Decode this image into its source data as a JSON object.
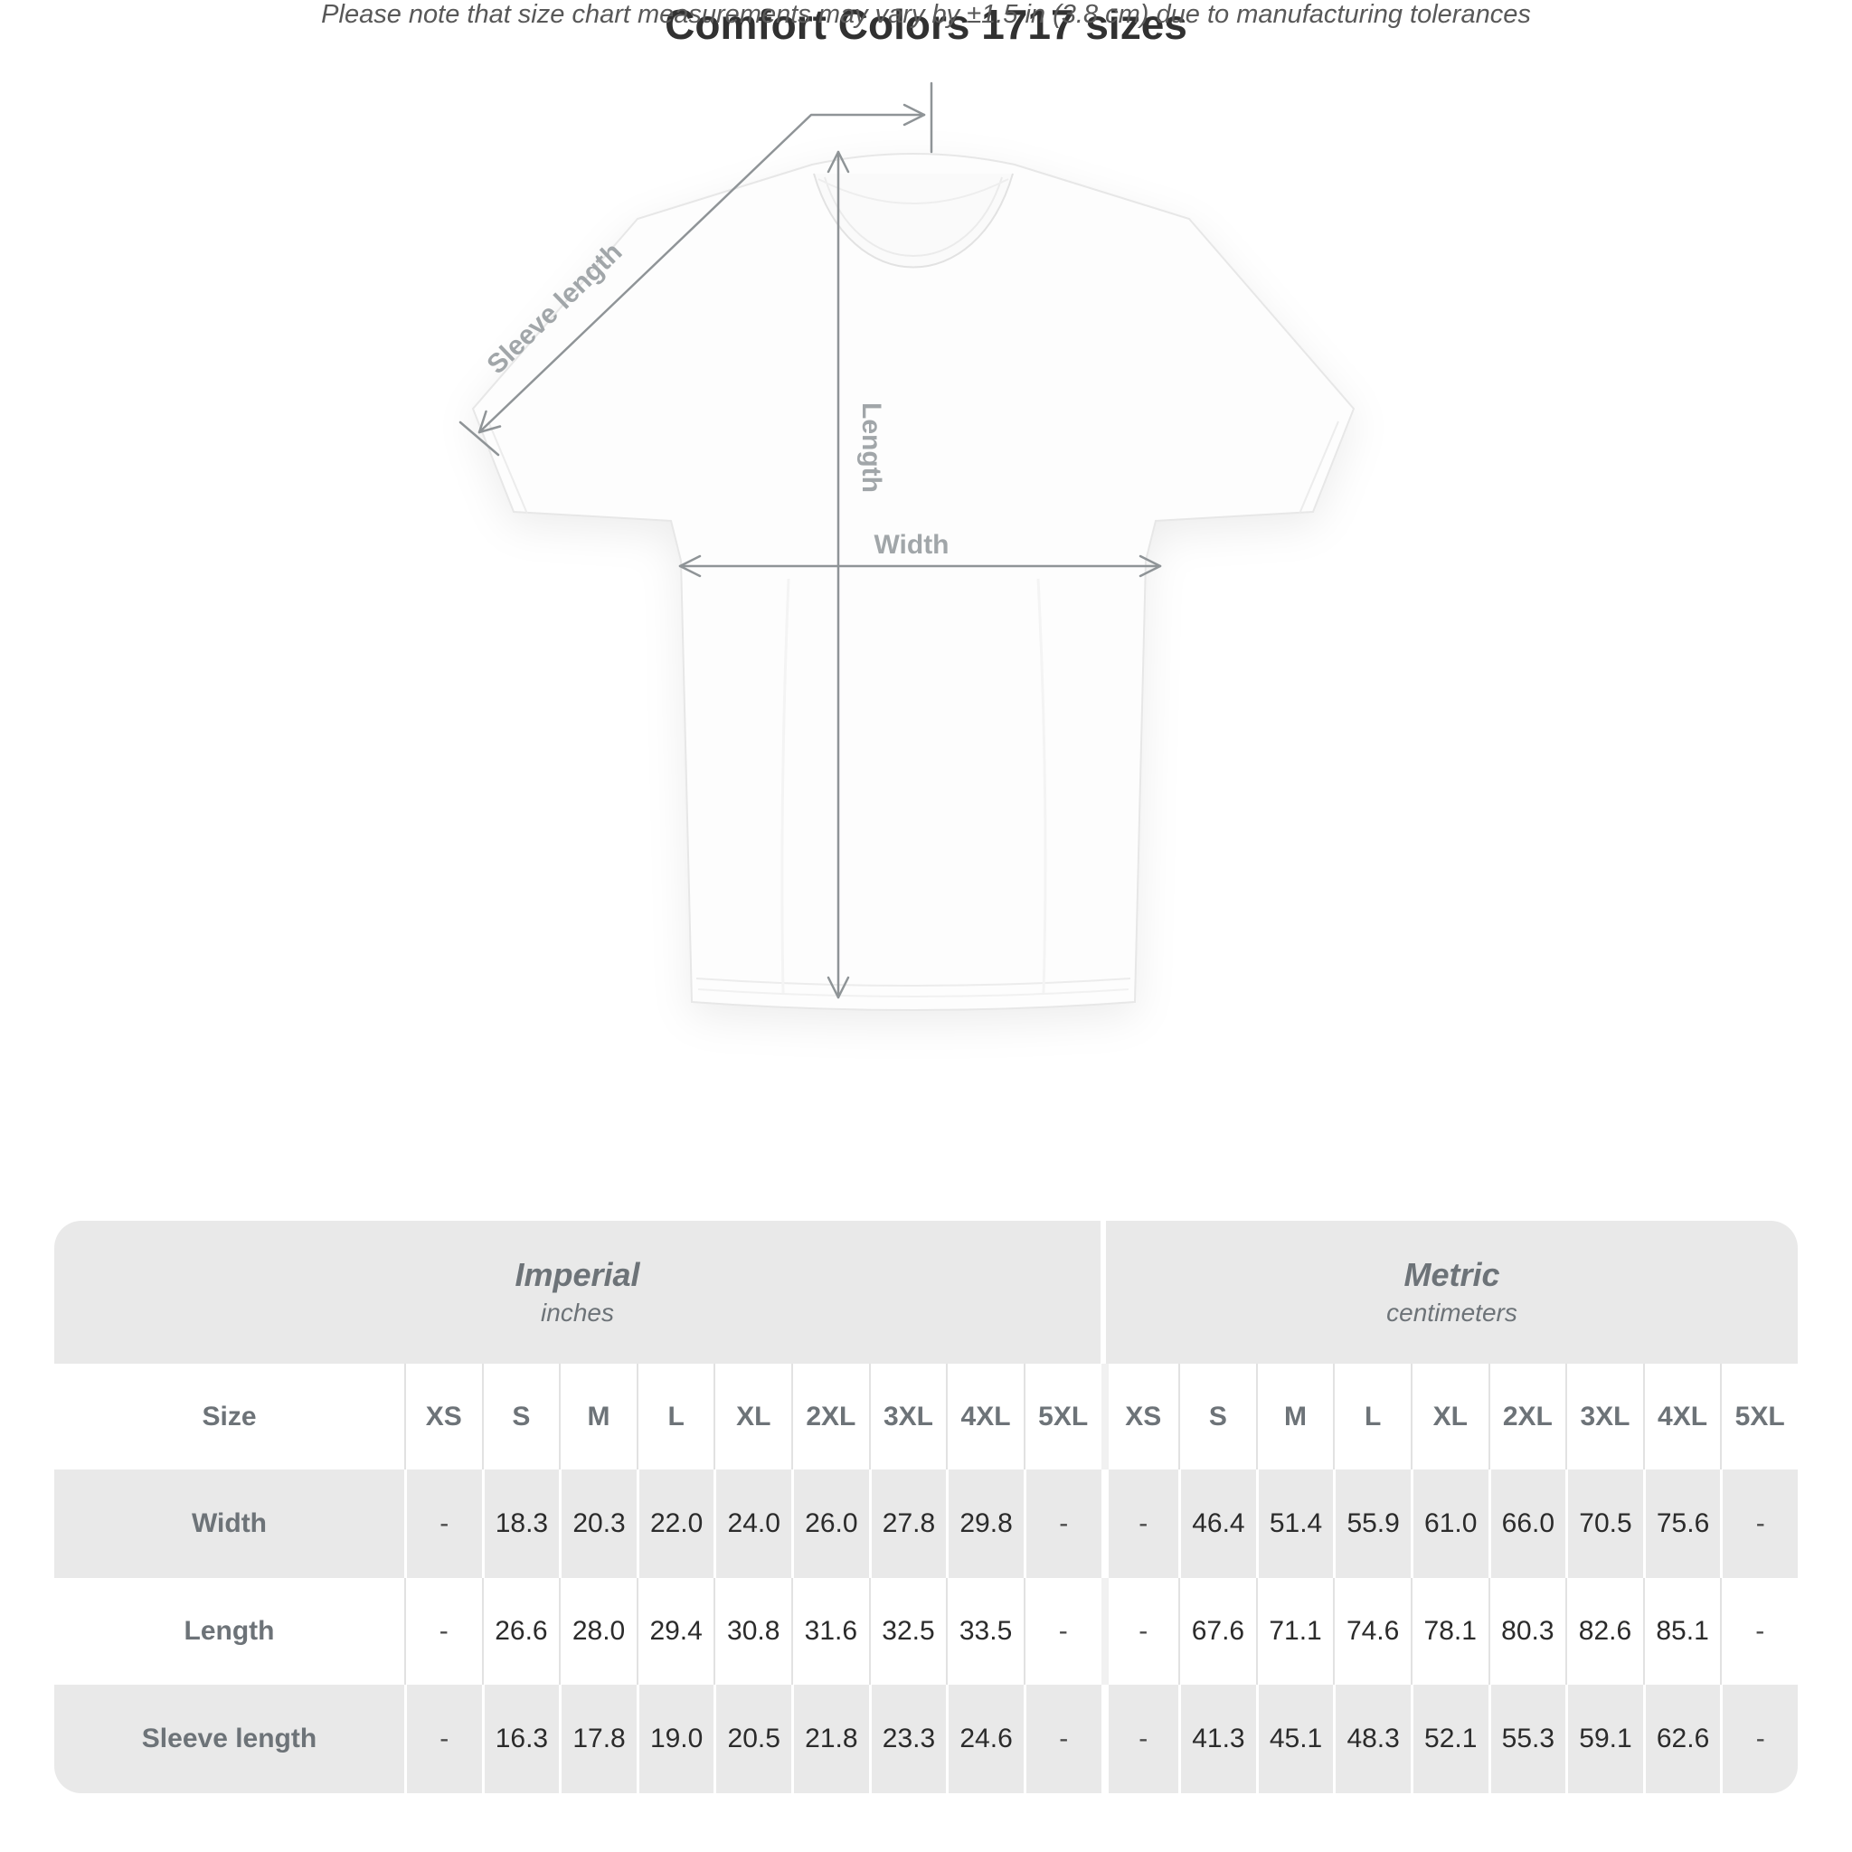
{
  "diagram": {
    "labels": {
      "sleeve_length": "Sleeve length",
      "length": "Length",
      "width": "Width"
    }
  },
  "title": "Comfort Colors 1717 sizes",
  "subtitle": "Please note that size chart measurements may vary by ±1.5 in (3.8 cm) due to manufacturing tolerances",
  "table": {
    "size_col_header": "Size",
    "unit_groups": [
      {
        "name": "Imperial",
        "unit": "inches"
      },
      {
        "name": "Metric",
        "unit": "centimeters"
      }
    ],
    "size_headers": [
      "XS",
      "S",
      "M",
      "L",
      "XL",
      "2XL",
      "3XL",
      "4XL",
      "5XL",
      "XS",
      "S",
      "M",
      "L",
      "XL",
      "2XL",
      "3XL",
      "4XL",
      "5XL"
    ],
    "rows": [
      {
        "label": "Width",
        "values": [
          "-",
          "18.3",
          "20.3",
          "22.0",
          "24.0",
          "26.0",
          "27.8",
          "29.8",
          "-",
          "-",
          "46.4",
          "51.4",
          "55.9",
          "61.0",
          "66.0",
          "70.5",
          "75.6",
          "-"
        ]
      },
      {
        "label": "Length",
        "values": [
          "-",
          "26.6",
          "28.0",
          "29.4",
          "30.8",
          "31.6",
          "32.5",
          "33.5",
          "-",
          "-",
          "67.6",
          "71.1",
          "74.6",
          "78.1",
          "80.3",
          "82.6",
          "85.1",
          "-"
        ]
      },
      {
        "label": "Sleeve length",
        "values": [
          "-",
          "16.3",
          "17.8",
          "19.0",
          "20.5",
          "21.8",
          "23.3",
          "24.6",
          "-",
          "-",
          "41.3",
          "45.1",
          "48.3",
          "52.1",
          "55.3",
          "59.1",
          "62.6",
          "-"
        ]
      }
    ]
  },
  "colors": {
    "table_band_gray": "#e9e9e9",
    "header_text_gray": "#6d7378",
    "value_text": "#2b2b2b",
    "arrow_gray": "#8f9497",
    "diagram_label_gray": "#a1a6a9",
    "title_color": "#313131"
  }
}
